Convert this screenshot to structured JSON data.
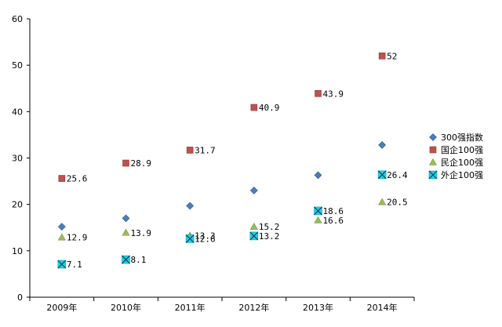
{
  "chart_data": {
    "type": "scatter",
    "categories": [
      "2009年",
      "2010年",
      "2011年",
      "2012年",
      "2013年",
      "2014年"
    ],
    "ylim": [
      0,
      60
    ],
    "yticks": [
      0,
      10,
      20,
      30,
      40,
      50,
      60
    ],
    "grid": false,
    "legend_position": "right",
    "series": [
      {
        "name": "300强指数",
        "marker": "diamond",
        "color": "#4a7ebb",
        "values": [
          15.2,
          17.0,
          19.7,
          23.0,
          26.3,
          32.8
        ],
        "labels": []
      },
      {
        "name": "国企100强",
        "marker": "square",
        "color": "#c0504d",
        "values": [
          25.6,
          28.9,
          31.7,
          40.9,
          43.9,
          52
        ],
        "labels": [
          "25.6",
          "28.9",
          "31.7",
          "40.9",
          "43.9",
          "52"
        ]
      },
      {
        "name": "民企100强",
        "marker": "triangle",
        "color": "#9bbb59",
        "values": [
          12.9,
          13.9,
          13.3,
          15.2,
          16.6,
          20.5
        ],
        "labels": [
          "12.9",
          "13.9",
          "13.3",
          "15.2",
          "16.6",
          "20.5"
        ]
      },
      {
        "name": "外企100强",
        "marker": "x-square",
        "color": "#1fd1e0",
        "values": [
          7.1,
          8.1,
          12.6,
          13.2,
          18.6,
          26.4
        ],
        "labels": [
          "7.1",
          "8.1",
          "12.6",
          "13.2",
          "18.6",
          "26.4"
        ]
      }
    ]
  }
}
